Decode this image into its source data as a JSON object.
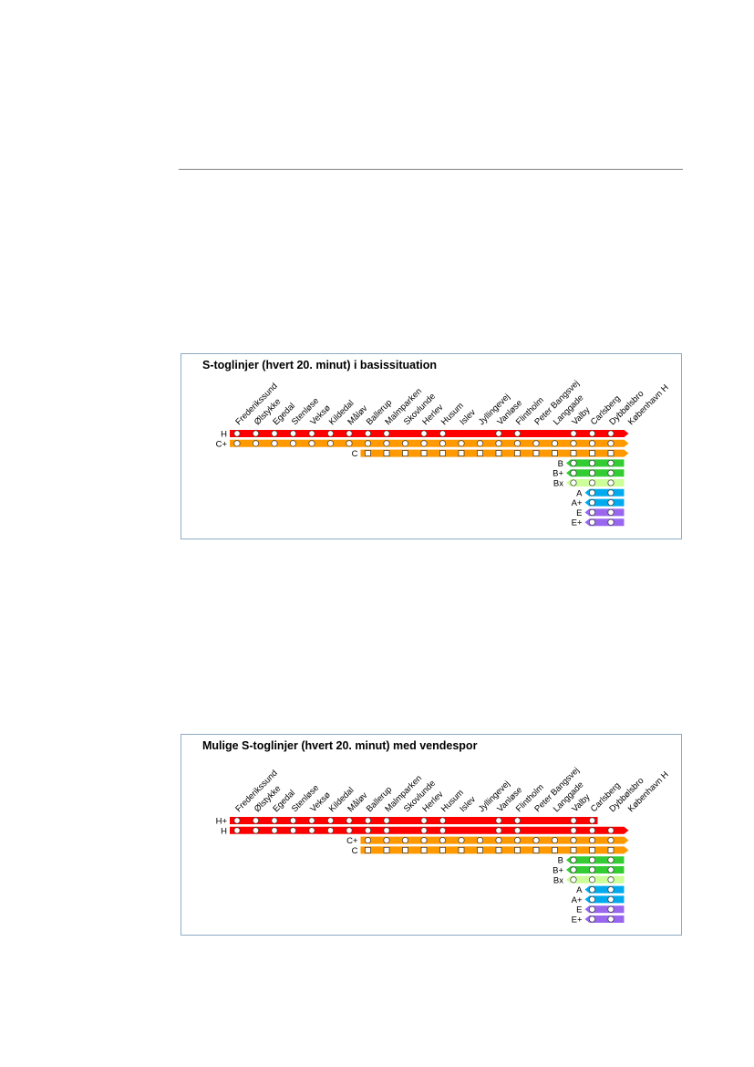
{
  "stations": [
    "Frederikssund",
    "Ølstykke",
    "Egedal",
    "Stenløse",
    "Veksø",
    "Kildedal",
    "Måløv",
    "Ballerup",
    "Malmparken",
    "Skovlunde",
    "Herlev",
    "Husum",
    "Islev",
    "Jyllingevej",
    "Vanløse",
    "Flintholm",
    "Peter Bangsvej",
    "Langgade",
    "Valby",
    "Carlsberg",
    "Dybbølsbro",
    "København H"
  ],
  "colors": {
    "red": "#ff0000",
    "orange": "#ff9900",
    "green": "#33cc33",
    "lightgreen": "#ccff99",
    "blue": "#00aaee",
    "purple": "#9966ee"
  },
  "diagrams": [
    {
      "title": "S-toglinjer (hvert 20. minut) i basissituation",
      "lines": [
        {
          "label": "H",
          "color": "red",
          "from": 0,
          "to": 21,
          "stops": [
            0,
            1,
            2,
            3,
            4,
            5,
            6,
            7,
            8,
            10,
            11,
            14,
            15,
            18,
            19,
            20
          ],
          "shape": "circle",
          "arrow": "right"
        },
        {
          "label": "C+",
          "color": "orange",
          "from": 0,
          "to": 21,
          "stops": [
            0,
            1,
            2,
            3,
            4,
            5,
            6,
            7,
            8,
            9,
            10,
            11,
            12,
            13,
            14,
            15,
            16,
            17,
            18,
            19,
            20
          ],
          "shape": "circle",
          "arrow": "right"
        },
        {
          "label": "C",
          "color": "orange",
          "from": 7,
          "to": 21,
          "stops": [
            7,
            8,
            9,
            10,
            11,
            12,
            13,
            14,
            15,
            16,
            17,
            18,
            19,
            20
          ],
          "shape": "square",
          "arrow": "right"
        },
        {
          "label": "B",
          "color": "green",
          "from": 18,
          "to": 21,
          "stops": [
            18,
            19,
            20
          ],
          "shape": "circle",
          "arrow": "left"
        },
        {
          "label": "B+",
          "color": "green",
          "from": 18,
          "to": 21,
          "stops": [
            18,
            19,
            20
          ],
          "shape": "circle",
          "arrow": "left"
        },
        {
          "label": "Bx",
          "color": "lightgreen",
          "from": 18,
          "to": 21,
          "stops": [
            18,
            19,
            20
          ],
          "shape": "circle",
          "arrow": "left"
        },
        {
          "label": "A",
          "color": "blue",
          "from": 19,
          "to": 21,
          "stops": [
            19,
            20
          ],
          "shape": "circle",
          "arrow": "left"
        },
        {
          "label": "A+",
          "color": "blue",
          "from": 19,
          "to": 21,
          "stops": [
            19,
            20
          ],
          "shape": "circle",
          "arrow": "left"
        },
        {
          "label": "E",
          "color": "purple",
          "from": 19,
          "to": 21,
          "stops": [
            19,
            20
          ],
          "shape": "circle",
          "arrow": "left"
        },
        {
          "label": "E+",
          "color": "purple",
          "from": 19,
          "to": 21,
          "stops": [
            19,
            20
          ],
          "shape": "circle",
          "arrow": "left"
        }
      ]
    },
    {
      "title": "Mulige S-toglinjer (hvert 20. minut) med vendespor",
      "lines": [
        {
          "label": "H+",
          "color": "red",
          "from": 0,
          "to": 19,
          "stops": [
            0,
            1,
            2,
            3,
            4,
            5,
            6,
            7,
            8,
            10,
            11,
            14,
            15,
            18,
            19
          ],
          "shape": "circle",
          "arrow": "none"
        },
        {
          "label": "H",
          "color": "red",
          "from": 0,
          "to": 21,
          "stops": [
            0,
            1,
            2,
            3,
            4,
            5,
            6,
            7,
            8,
            10,
            11,
            14,
            15,
            18,
            19,
            20
          ],
          "shape": "circle",
          "arrow": "right"
        },
        {
          "label": "C+",
          "color": "orange",
          "from": 7,
          "to": 21,
          "stops": [
            7,
            8,
            9,
            10,
            11,
            12,
            13,
            14,
            15,
            16,
            17,
            18,
            19,
            20
          ],
          "shape": "circle",
          "arrow": "right"
        },
        {
          "label": "C",
          "color": "orange",
          "from": 7,
          "to": 21,
          "stops": [
            7,
            8,
            9,
            10,
            11,
            12,
            13,
            14,
            15,
            16,
            17,
            18,
            19,
            20
          ],
          "shape": "square",
          "arrow": "right"
        },
        {
          "label": "B",
          "color": "green",
          "from": 18,
          "to": 21,
          "stops": [
            18,
            19,
            20
          ],
          "shape": "circle",
          "arrow": "left"
        },
        {
          "label": "B+",
          "color": "green",
          "from": 18,
          "to": 21,
          "stops": [
            18,
            19,
            20
          ],
          "shape": "circle",
          "arrow": "left"
        },
        {
          "label": "Bx",
          "color": "lightgreen",
          "from": 18,
          "to": 21,
          "stops": [
            18,
            19,
            20
          ],
          "shape": "circle",
          "arrow": "left"
        },
        {
          "label": "A",
          "color": "blue",
          "from": 19,
          "to": 21,
          "stops": [
            19,
            20
          ],
          "shape": "circle",
          "arrow": "left"
        },
        {
          "label": "A+",
          "color": "blue",
          "from": 19,
          "to": 21,
          "stops": [
            19,
            20
          ],
          "shape": "circle",
          "arrow": "left"
        },
        {
          "label": "E",
          "color": "purple",
          "from": 19,
          "to": 21,
          "stops": [
            19,
            20
          ],
          "shape": "circle",
          "arrow": "left"
        },
        {
          "label": "E+",
          "color": "purple",
          "from": 19,
          "to": 21,
          "stops": [
            19,
            20
          ],
          "shape": "circle",
          "arrow": "left"
        }
      ]
    }
  ]
}
